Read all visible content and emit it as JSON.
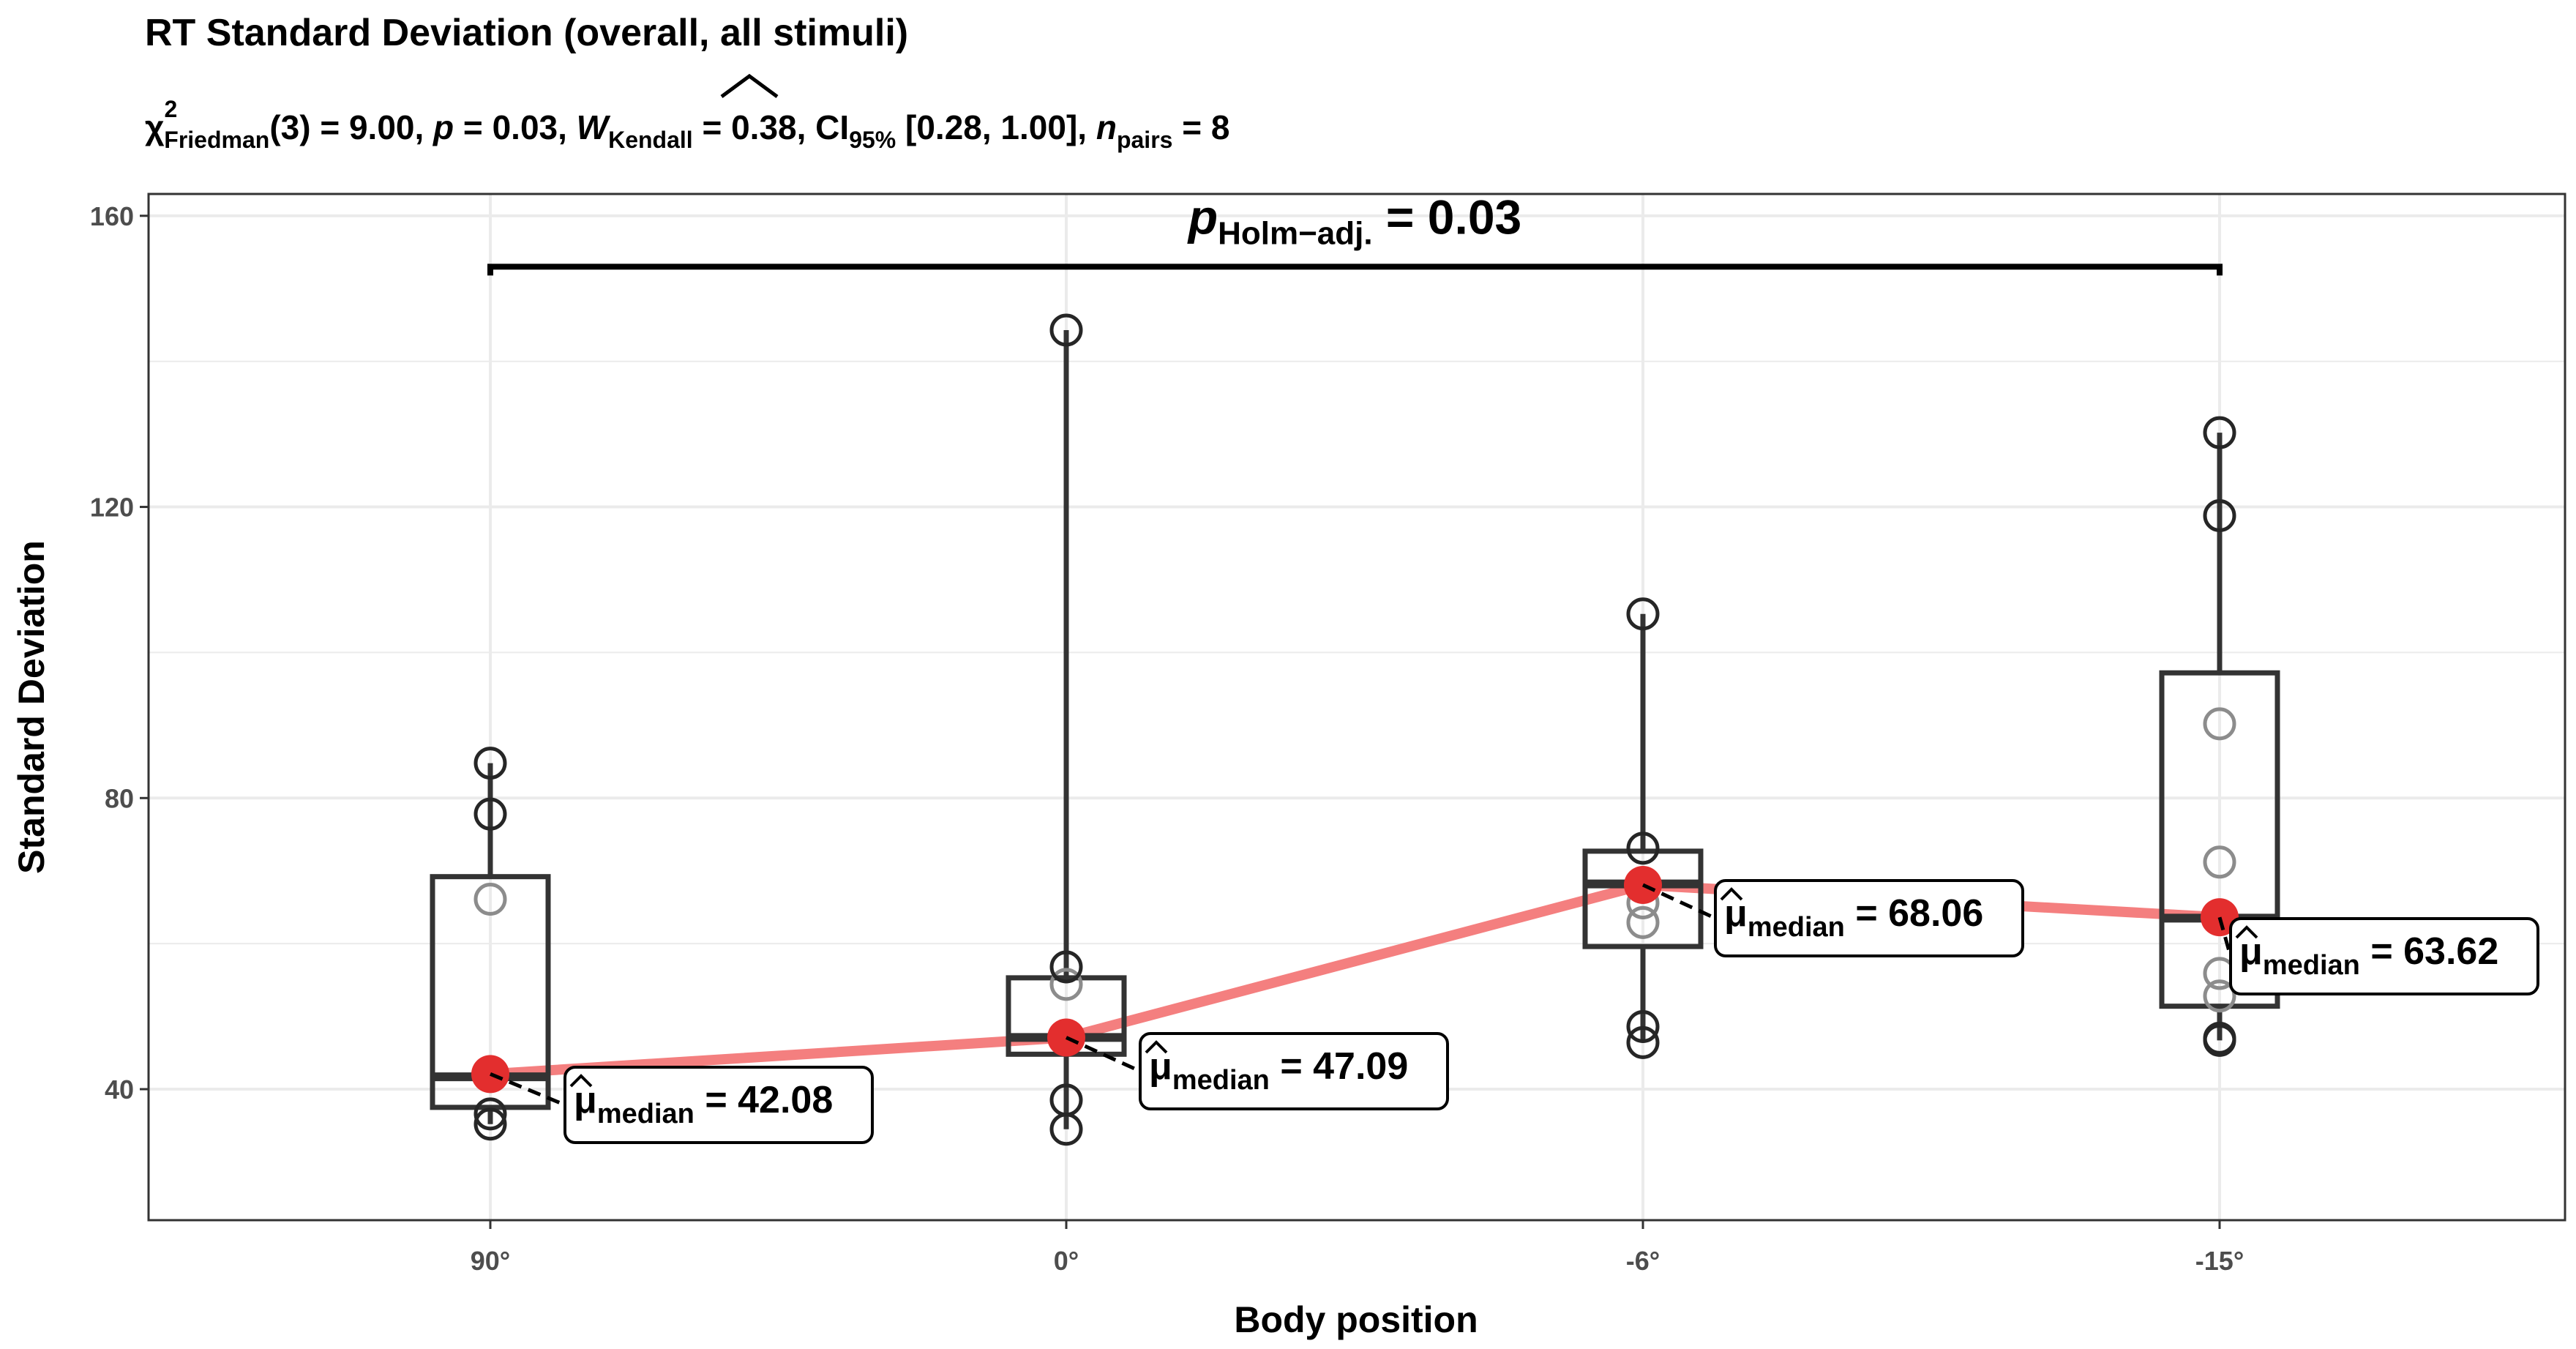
{
  "chart_data": {
    "type": "boxplot",
    "title": "RT Standard Deviation (overall, all stimuli)",
    "subtitle": {
      "chi_symbol": "χ",
      "chi_sup": "2",
      "chi_sub": "Friedman",
      "df_text": "(3) = 9.00, ",
      "p_symbol": "p",
      "p_text": " = 0.03, ",
      "w_symbol": "W",
      "w_sub": "Kendall",
      "w_text": " = 0.38, CI",
      "ci_sub": "95%",
      "ci_text": " [0.28, 1.00], ",
      "n_symbol": "n",
      "n_sub": "pairs",
      "n_text": " = 8"
    },
    "xlabel": "Body position",
    "ylabel": "Standard Deviation",
    "ylim": [
      22,
      163
    ],
    "yticks": [
      40,
      80,
      120,
      160
    ],
    "ytick_labels": [
      "40",
      "80",
      "120",
      "160"
    ],
    "categories": [
      "90°",
      "0°",
      "-6°",
      "-15°"
    ],
    "boxes": [
      {
        "q1": 37.5,
        "median": 41.7,
        "q3": 69.2,
        "whisker_low": 35.2,
        "whisker_high": 84.8
      },
      {
        "q1": 44.8,
        "median": 47.1,
        "q3": 55.3,
        "whisker_low": 34.5,
        "whisker_high": 144.3
      },
      {
        "q1": 59.6,
        "median": 68.2,
        "q3": 72.7,
        "whisker_low": 46.4,
        "whisker_high": 105.3
      },
      {
        "q1": 51.4,
        "median": 63.5,
        "q3": 97.2,
        "whisker_low": 46.7,
        "whisker_high": 130.2
      }
    ],
    "points": [
      [
        35.2,
        36.6,
        66.1,
        77.8,
        84.8
      ],
      [
        34.5,
        38.5,
        54.4,
        56.8,
        144.3
      ],
      [
        46.4,
        48.6,
        62.9,
        65.6,
        73.1,
        105.3
      ],
      [
        46.7,
        47.0,
        52.8,
        55.9,
        71.2,
        90.2,
        118.8,
        130.2
      ]
    ],
    "medians": [
      42.08,
      47.09,
      68.06,
      63.62
    ],
    "median_labels": [
      {
        "symbol": "μ",
        "sub": "median",
        "value_text": " = 42.08"
      },
      {
        "symbol": "μ",
        "sub": "median",
        "value_text": " = 47.09"
      },
      {
        "symbol": "μ",
        "sub": "median",
        "value_text": " = 68.06"
      },
      {
        "symbol": "μ",
        "sub": "median",
        "value_text": " = 63.62"
      }
    ],
    "significance": {
      "from": 0,
      "to": 3,
      "y": 153,
      "p_symbol": "p",
      "p_sub": "Holm−adj.",
      "value_text": " = 0.03"
    },
    "colors": {
      "median_point": "#e32e2e",
      "median_line": "#f47f7f",
      "box": "#333333",
      "point_dark": "#262626",
      "point_light": "#8c8c8c",
      "grid": "#ebebeb",
      "panel_border": "#333333"
    }
  }
}
